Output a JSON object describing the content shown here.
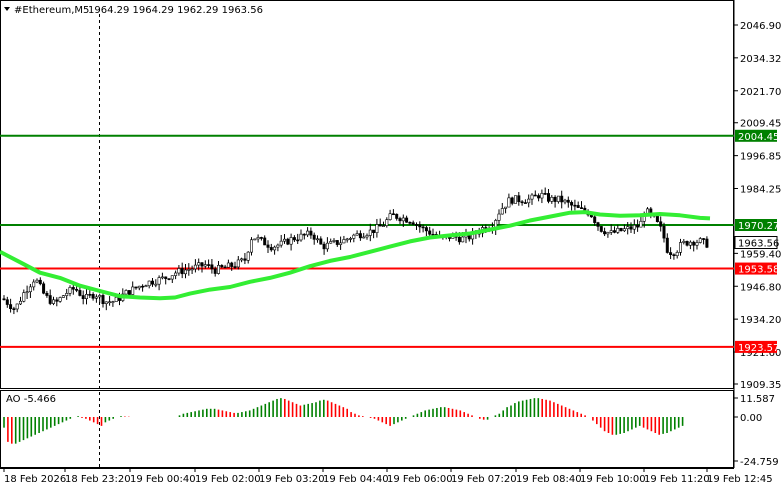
{
  "header": {
    "symbol": "#Ethereum,M5",
    "ohlc": "1964.29 1964.29 1962.29 1963.56"
  },
  "price_axis": {
    "ticks": [
      "2046.90",
      "2034.32",
      "2021.70",
      "2009.45",
      "1996.85",
      "1984.25",
      "1959.40",
      "1946.80",
      "1934.20",
      "1921.60",
      "1909.35"
    ]
  },
  "levels": [
    {
      "label": "2004.45",
      "value": 2004.45,
      "color": "#008000"
    },
    {
      "label": "1970.27",
      "value": 1970.27,
      "color": "#008000"
    },
    {
      "label": "1953.58",
      "value": 1953.58,
      "color": "#ff0000"
    },
    {
      "label": "1923.57",
      "value": 1923.57,
      "color": "#ff0000"
    }
  ],
  "current_price": {
    "label": "1963.56",
    "value": 1963.56
  },
  "indicator": {
    "label": "AO -5.466",
    "ticks": [
      "11.587",
      "0.00",
      "-24.759"
    ]
  },
  "time_axis": {
    "labels": [
      "18 Feb 2026",
      "18 Feb 23:20",
      "19 Feb 00:40",
      "19 Feb 02:00",
      "19 Feb 03:20",
      "19 Feb 04:40",
      "19 Feb 06:00",
      "19 Feb 07:20",
      "19 Feb 08:40",
      "19 Feb 10:00",
      "19 Feb 11:20",
      "19 Feb 12:45"
    ]
  },
  "colors": {
    "ma_line": "#33ee33",
    "support": "#ff0000",
    "resistance": "#008000",
    "ao_up": "#008000",
    "ao_down": "#ff0000"
  },
  "chart_data": {
    "type": "candlestick",
    "y_range": [
      1909.35,
      2046.9
    ],
    "ma_trend": [
      [
        0,
        1960
      ],
      [
        20,
        1956
      ],
      [
        40,
        1952
      ],
      [
        60,
        1950
      ],
      [
        80,
        1947
      ],
      [
        100,
        1945
      ],
      [
        120,
        1943
      ],
      [
        140,
        1942.5
      ],
      [
        160,
        1942.2
      ],
      [
        175,
        1942.5
      ],
      [
        190,
        1944
      ],
      [
        210,
        1945.5
      ],
      [
        230,
        1946.5
      ],
      [
        250,
        1948.5
      ],
      [
        270,
        1950
      ],
      [
        290,
        1952
      ],
      [
        310,
        1954.5
      ],
      [
        330,
        1956.5
      ],
      [
        350,
        1958
      ],
      [
        370,
        1960
      ],
      [
        390,
        1962
      ],
      [
        410,
        1964
      ],
      [
        430,
        1965.5
      ],
      [
        450,
        1966.3
      ],
      [
        470,
        1967
      ],
      [
        490,
        1968.5
      ],
      [
        510,
        1970
      ],
      [
        530,
        1972
      ],
      [
        550,
        1973.5
      ],
      [
        570,
        1975
      ],
      [
        585,
        1975.2
      ],
      [
        600,
        1974.3
      ],
      [
        620,
        1973.8
      ],
      [
        640,
        1974
      ],
      [
        660,
        1974.5
      ],
      [
        680,
        1974
      ],
      [
        700,
        1973
      ],
      [
        710,
        1972.8
      ]
    ],
    "candle_path": [
      [
        3,
        1942
      ],
      [
        15,
        1938
      ],
      [
        25,
        1945
      ],
      [
        35,
        1950
      ],
      [
        45,
        1943
      ],
      [
        55,
        1940
      ],
      [
        65,
        1944
      ],
      [
        75,
        1946
      ],
      [
        85,
        1942
      ],
      [
        95,
        1944
      ],
      [
        105,
        1941
      ],
      [
        115,
        1941
      ],
      [
        125,
        1944
      ],
      [
        135,
        1946
      ],
      [
        145,
        1948
      ],
      [
        155,
        1949
      ],
      [
        165,
        1950
      ],
      [
        175,
        1952
      ],
      [
        185,
        1953
      ],
      [
        195,
        1954
      ],
      [
        205,
        1955
      ],
      [
        215,
        1953
      ],
      [
        225,
        1954
      ],
      [
        235,
        1955
      ],
      [
        245,
        1957
      ],
      [
        252,
        1966
      ],
      [
        262,
        1964
      ],
      [
        272,
        1962
      ],
      [
        282,
        1963
      ],
      [
        292,
        1965
      ],
      [
        302,
        1966
      ],
      [
        312,
        1967
      ],
      [
        322,
        1962
      ],
      [
        332,
        1963
      ],
      [
        342,
        1964
      ],
      [
        352,
        1966
      ],
      [
        362,
        1967
      ],
      [
        372,
        1968
      ],
      [
        382,
        1970
      ],
      [
        392,
        1974
      ],
      [
        402,
        1973
      ],
      [
        412,
        1972
      ],
      [
        422,
        1969
      ],
      [
        432,
        1967
      ],
      [
        442,
        1965
      ],
      [
        452,
        1966
      ],
      [
        462,
        1965
      ],
      [
        472,
        1966
      ],
      [
        482,
        1969
      ],
      [
        492,
        1970
      ],
      [
        500,
        1976
      ],
      [
        510,
        1980
      ],
      [
        520,
        1980
      ],
      [
        530,
        1980
      ],
      [
        540,
        1982
      ],
      [
        550,
        1980
      ],
      [
        560,
        1980
      ],
      [
        570,
        1978
      ],
      [
        580,
        1976
      ],
      [
        590,
        1975
      ],
      [
        600,
        1969
      ],
      [
        610,
        1967
      ],
      [
        620,
        1968
      ],
      [
        630,
        1969
      ],
      [
        640,
        1970
      ],
      [
        645,
        1976
      ],
      [
        655,
        1972
      ],
      [
        662,
        1968
      ],
      [
        668,
        1960
      ],
      [
        675,
        1960
      ],
      [
        682,
        1963
      ],
      [
        690,
        1964
      ],
      [
        700,
        1964
      ],
      [
        707,
        1963
      ]
    ],
    "ao_histogram": [
      -6,
      -14,
      -15,
      -15,
      -14,
      -13,
      -12,
      -11,
      -10,
      -9,
      -8,
      -7,
      -6,
      -5,
      -4,
      -3,
      -2,
      -1,
      0,
      0.5,
      -0.5,
      -1,
      -2,
      -3,
      -4,
      -5,
      -3,
      -2,
      -1,
      0,
      0.5,
      0.3,
      0.2,
      0,
      0,
      0,
      0,
      0,
      0,
      0,
      0,
      0,
      0,
      0,
      0,
      1,
      2,
      2.5,
      3,
      3.5,
      4,
      4.5,
      5,
      5,
      5,
      4.5,
      4,
      3.5,
      3,
      2.5,
      2.5,
      3,
      3.5,
      4,
      5,
      6,
      7,
      8,
      9,
      10,
      11,
      11.5,
      11,
      10,
      9,
      8,
      7,
      7.5,
      8,
      8.5,
      9,
      10,
      10.5,
      10,
      9,
      8,
      7,
      6,
      5,
      3,
      2,
      1,
      0.5,
      0,
      -0.5,
      -1,
      -2,
      -3,
      -4,
      -5,
      -4,
      -3,
      -2,
      -1,
      0,
      1,
      2,
      3,
      4,
      4.5,
      5,
      5.5,
      6,
      6,
      5.5,
      5,
      4.5,
      4,
      3,
      2,
      1,
      0,
      -1,
      -1.5,
      -1.5,
      0,
      1,
      2,
      4,
      6,
      7,
      8.5,
      9.5,
      10,
      10.5,
      11,
      11.5,
      11.5,
      11,
      10.5,
      10,
      9,
      8,
      7,
      6,
      5,
      4,
      3,
      2,
      1,
      0,
      -2,
      -4,
      -6,
      -8,
      -9,
      -10,
      -10,
      -9.5,
      -9,
      -8,
      -7,
      -6,
      -5,
      -6,
      -7,
      -8,
      -9,
      -10,
      -9.5,
      -9,
      -8,
      -7,
      -6,
      -5
    ]
  }
}
